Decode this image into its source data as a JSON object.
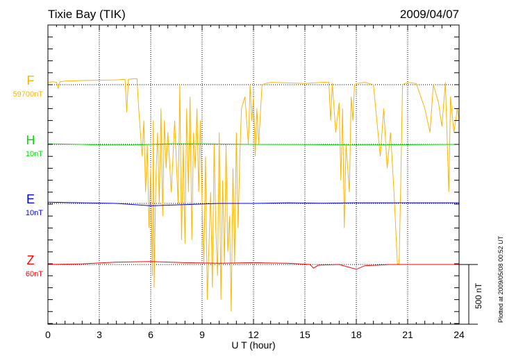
{
  "chart_data": {
    "type": "line",
    "title": "Tixie Bay (TIK)",
    "date": "2009/04/07",
    "xlabel": "U T (hour)",
    "xlim": [
      0,
      24
    ],
    "xticks": [
      "0",
      "3",
      "6",
      "9",
      "12",
      "15",
      "18",
      "21",
      "24"
    ],
    "scale_bar": "500 nT",
    "plotted_at": "Plotted at 2009/05/08 00:52 UT",
    "series": [
      {
        "name": "F",
        "baseline_label": "59700nT",
        "color": "#ffb400",
        "points": [
          [
            0,
            20
          ],
          [
            0.3,
            25
          ],
          [
            0.5,
            20
          ],
          [
            0.6,
            -30
          ],
          [
            0.7,
            25
          ],
          [
            1,
            30
          ],
          [
            2,
            35
          ],
          [
            3,
            38
          ],
          [
            4,
            40
          ],
          [
            4.5,
            45
          ],
          [
            4.6,
            -230
          ],
          [
            4.7,
            45
          ],
          [
            5,
            50
          ],
          [
            5.2,
            50
          ],
          [
            5.3,
            -200
          ],
          [
            5.4,
            -400
          ],
          [
            5.5,
            -600
          ],
          [
            5.6,
            -300
          ],
          [
            5.7,
            -900
          ],
          [
            5.8,
            -500
          ],
          [
            5.9,
            -1200
          ],
          [
            6.0,
            -700
          ],
          [
            6.1,
            -1600
          ],
          [
            6.15,
            -300
          ],
          [
            6.2,
            -1700
          ],
          [
            6.3,
            -800
          ],
          [
            6.4,
            -400
          ],
          [
            6.5,
            -1000
          ],
          [
            6.6,
            -200
          ],
          [
            6.7,
            -1100
          ],
          [
            6.8,
            -300
          ],
          [
            6.9,
            -700
          ],
          [
            7.0,
            -400
          ],
          [
            7.2,
            -900
          ],
          [
            7.4,
            -300
          ],
          [
            7.6,
            -1000
          ],
          [
            7.7,
            0
          ],
          [
            7.8,
            -1300
          ],
          [
            7.9,
            -500
          ],
          [
            8.0,
            -1330
          ],
          [
            8.1,
            -200
          ],
          [
            8.2,
            -900
          ],
          [
            8.3,
            -100
          ],
          [
            8.4,
            -1300
          ],
          [
            8.5,
            -400
          ],
          [
            8.6,
            -700
          ],
          [
            8.7,
            -200
          ],
          [
            8.8,
            -900
          ],
          [
            8.9,
            -300
          ],
          [
            9.0,
            -1000
          ],
          [
            9.1,
            -1500
          ],
          [
            9.2,
            -600
          ],
          [
            9.3,
            -1800
          ],
          [
            9.5,
            -900
          ],
          [
            9.6,
            -1700
          ],
          [
            9.7,
            -500
          ],
          [
            9.8,
            -1200
          ],
          [
            9.9,
            -1600
          ],
          [
            10.0,
            -400
          ],
          [
            10.1,
            -1800
          ],
          [
            10.2,
            -800
          ],
          [
            10.3,
            -1500
          ],
          [
            10.4,
            -500
          ],
          [
            10.5,
            -1400
          ],
          [
            10.6,
            -1100
          ],
          [
            10.7,
            -1900
          ],
          [
            10.8,
            -700
          ],
          [
            10.9,
            -1500
          ],
          [
            11.0,
            -400
          ],
          [
            11.1,
            -1200
          ],
          [
            11.2,
            -600
          ],
          [
            11.3,
            -200
          ],
          [
            11.5,
            -100
          ],
          [
            11.7,
            -500
          ],
          [
            11.8,
            0
          ],
          [
            11.9,
            -300
          ],
          [
            12.0,
            -100
          ],
          [
            12.1,
            -600
          ],
          [
            12.2,
            -200
          ],
          [
            12.3,
            -500
          ],
          [
            12.5,
            0
          ],
          [
            12.7,
            10
          ],
          [
            13,
            20
          ],
          [
            14,
            15
          ],
          [
            15,
            10
          ],
          [
            15.5,
            15
          ],
          [
            16,
            20
          ],
          [
            16.4,
            20
          ],
          [
            16.5,
            -300
          ],
          [
            16.6,
            10
          ],
          [
            16.8,
            -400
          ],
          [
            17.0,
            -150
          ],
          [
            17.1,
            -800
          ],
          [
            17.2,
            -200
          ],
          [
            17.3,
            -1200
          ],
          [
            17.4,
            -500
          ],
          [
            17.6,
            -900
          ],
          [
            17.7,
            -100
          ],
          [
            17.8,
            -300
          ],
          [
            17.9,
            0
          ],
          [
            18,
            10
          ],
          [
            18.5,
            20
          ],
          [
            19.0,
            0
          ],
          [
            19.2,
            -300
          ],
          [
            19.4,
            -600
          ],
          [
            19.6,
            -200
          ],
          [
            19.8,
            -700
          ],
          [
            20.0,
            -400
          ],
          [
            20.2,
            -900
          ],
          [
            20.4,
            -1500
          ],
          [
            20.5,
            -1500
          ],
          [
            20.6,
            -800
          ],
          [
            20.7,
            0
          ],
          [
            21,
            20
          ],
          [
            21.5,
            10
          ],
          [
            22.0,
            -200
          ],
          [
            22.3,
            -400
          ],
          [
            22.5,
            0
          ],
          [
            22.8,
            -150
          ],
          [
            23.0,
            -350
          ],
          [
            23.2,
            20
          ],
          [
            23.4,
            -900
          ],
          [
            23.5,
            -100
          ],
          [
            23.7,
            -400
          ],
          [
            23.9,
            -200
          ],
          [
            24,
            -300
          ]
        ]
      },
      {
        "name": "H",
        "baseline_label": "10nT",
        "color": "#00e000",
        "points": [
          [
            0,
            5
          ],
          [
            2,
            0
          ],
          [
            3,
            -5
          ],
          [
            5,
            -5
          ],
          [
            7,
            5
          ],
          [
            9,
            5
          ],
          [
            12,
            0
          ],
          [
            15,
            -2
          ],
          [
            18,
            -5
          ],
          [
            21,
            -3
          ],
          [
            24,
            0
          ]
        ]
      },
      {
        "name": "E",
        "baseline_label": "10nT",
        "color": "#0000ff",
        "points": [
          [
            0,
            10
          ],
          [
            2,
            5
          ],
          [
            4,
            0
          ],
          [
            6,
            -20
          ],
          [
            8,
            -10
          ],
          [
            10,
            0
          ],
          [
            12,
            0
          ],
          [
            14,
            5
          ],
          [
            16,
            2
          ],
          [
            18,
            5
          ],
          [
            20,
            5
          ],
          [
            24,
            5
          ]
        ]
      },
      {
        "name": "Z",
        "baseline_label": "60nT",
        "color": "#ff0000",
        "points": [
          [
            0,
            0
          ],
          [
            2,
            5
          ],
          [
            4,
            20
          ],
          [
            6,
            25
          ],
          [
            8,
            15
          ],
          [
            10,
            10
          ],
          [
            12,
            15
          ],
          [
            14,
            10
          ],
          [
            15.3,
            0
          ],
          [
            15.5,
            -30
          ],
          [
            15.8,
            -5
          ],
          [
            17,
            0
          ],
          [
            18,
            -40
          ],
          [
            18.5,
            -10
          ],
          [
            20,
            0
          ],
          [
            24,
            0
          ]
        ]
      }
    ]
  }
}
